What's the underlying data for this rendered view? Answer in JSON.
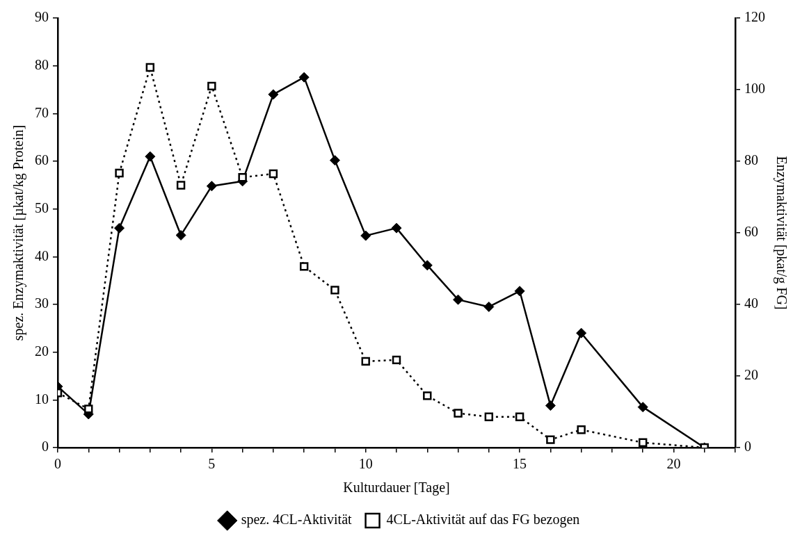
{
  "chart_data": {
    "type": "line",
    "xlabel": "Kulturdauer [Tage]",
    "ylabel": "spez. Enzymaktivität [µkat/kg Protein]",
    "y2label": "Enzymaktivität [pkat/g FG]",
    "x": [
      0,
      1,
      2,
      3,
      4,
      5,
      6,
      7,
      8,
      9,
      10,
      11,
      12,
      13,
      14,
      15,
      16,
      17,
      19,
      21
    ],
    "series": [
      {
        "name": "spez. 4CL-Aktivität",
        "color": "#000000",
        "marker": "diamond",
        "line_style": "solid",
        "values": [
          12.8,
          7,
          46,
          61,
          44.5,
          54.8,
          55.8,
          74,
          77.6,
          60.2,
          44.4,
          46,
          38.2,
          31,
          29.5,
          32.8,
          8.8,
          24,
          8.5,
          0
        ]
      },
      {
        "name": "4CL-Aktivität auf das FG bezogen",
        "color": "#000000",
        "marker": "square",
        "line_style": "dotted",
        "axis": "y2",
        "values": [
          15.3,
          10.8,
          76.7,
          106.2,
          73.3,
          101,
          75.5,
          76.5,
          50.6,
          44,
          24.1,
          24.5,
          14.5,
          9.6,
          8.6,
          8.6,
          2.2,
          5,
          1.4,
          0
        ]
      }
    ],
    "xlim": [
      0,
      22
    ],
    "xticks": [
      0,
      {
        "value": 1,
        "label": null
      },
      {
        "value": 2,
        "label": null
      },
      {
        "value": 3,
        "label": null
      },
      {
        "value": 4,
        "label": null
      },
      5,
      {
        "value": 6,
        "label": null
      },
      {
        "value": 7,
        "label": null
      },
      {
        "value": 8,
        "label": null
      },
      {
        "value": 9,
        "label": null
      },
      10,
      {
        "value": 11,
        "label": null
      },
      {
        "value": 12,
        "label": null
      },
      {
        "value": 13,
        "label": null
      },
      {
        "value": 14,
        "label": null
      },
      15,
      {
        "value": 16,
        "label": null
      },
      {
        "value": 17,
        "label": null
      },
      {
        "value": 18,
        "label": null
      },
      {
        "value": 19,
        "label": null
      },
      20,
      {
        "value": 21,
        "label": null
      },
      {
        "value": 22,
        "label": null
      }
    ],
    "ylim": [
      0,
      90
    ],
    "yticks": [
      0,
      10,
      20,
      30,
      40,
      50,
      60,
      70,
      80,
      90
    ],
    "y2lim": [
      0,
      120
    ],
    "y2ticks": [
      0,
      20,
      40,
      60,
      80,
      100,
      120
    ],
    "grid": false,
    "legend": "bottom"
  }
}
